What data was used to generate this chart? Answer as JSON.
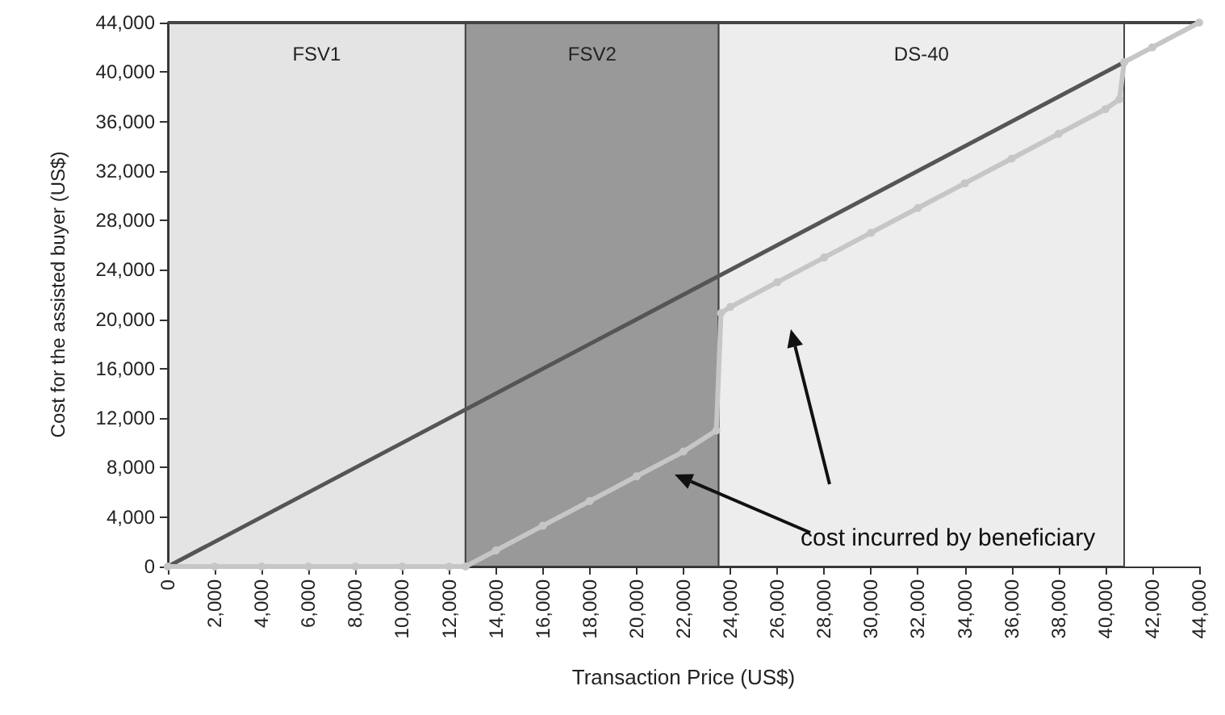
{
  "chart_data": {
    "type": "line",
    "xlabel": "Transaction Price (US$)",
    "ylabel": "Cost for the assisted buyer (US$)",
    "xlim": [
      0,
      44000
    ],
    "ylim": [
      0,
      44000
    ],
    "xticks": [
      {
        "value": 0,
        "label": "0"
      },
      {
        "value": 2000,
        "label": "2,000"
      },
      {
        "value": 4000,
        "label": "4,000"
      },
      {
        "value": 6000,
        "label": "6,000"
      },
      {
        "value": 8000,
        "label": "8,000"
      },
      {
        "value": 10000,
        "label": "10,000"
      },
      {
        "value": 12000,
        "label": "12,000"
      },
      {
        "value": 14000,
        "label": "14,000"
      },
      {
        "value": 16000,
        "label": "16,000"
      },
      {
        "value": 18000,
        "label": "18,000"
      },
      {
        "value": 20000,
        "label": "20,000"
      },
      {
        "value": 22000,
        "label": "22,000"
      },
      {
        "value": 24000,
        "label": "24,000"
      },
      {
        "value": 26000,
        "label": "26,000"
      },
      {
        "value": 28000,
        "label": "28,000"
      },
      {
        "value": 30000,
        "label": "30,000"
      },
      {
        "value": 32000,
        "label": "32,000"
      },
      {
        "value": 34000,
        "label": "34,000"
      },
      {
        "value": 36000,
        "label": "36,000"
      },
      {
        "value": 38000,
        "label": "38,000"
      },
      {
        "value": 40000,
        "label": "40,000"
      },
      {
        "value": 42000,
        "label": "42,000"
      },
      {
        "value": 44000,
        "label": "44,000"
      }
    ],
    "yticks": [
      {
        "value": 0,
        "label": "0"
      },
      {
        "value": 4000,
        "label": "4,000"
      },
      {
        "value": 8000,
        "label": "8,000"
      },
      {
        "value": 12000,
        "label": "12,000"
      },
      {
        "value": 16000,
        "label": "16,000"
      },
      {
        "value": 20000,
        "label": "20,000"
      },
      {
        "value": 24000,
        "label": "24,000"
      },
      {
        "value": 28000,
        "label": "28,000"
      },
      {
        "value": 32000,
        "label": "32,000"
      },
      {
        "value": 36000,
        "label": "36,000"
      },
      {
        "value": 40000,
        "label": "40,000"
      },
      {
        "value": 44000,
        "label": "44,000"
      }
    ],
    "grid": false,
    "bands": [
      {
        "axis": "x",
        "from": 0,
        "to": 12700,
        "label": "FSV1",
        "color": "#e4e4e4"
      },
      {
        "axis": "x",
        "from": 12700,
        "to": 23500,
        "label": "FSV2",
        "color": "#999999"
      },
      {
        "axis": "x",
        "from": 23500,
        "to": 40800,
        "label": "DS-40",
        "color": "#ededed"
      }
    ],
    "series": [
      {
        "color": "#555555",
        "marker": "none",
        "x": [
          0,
          40800
        ],
        "values": [
          0,
          40800
        ]
      },
      {
        "color": "#c6c6c6",
        "marker": "circle",
        "x": [
          0,
          2000,
          4000,
          6000,
          8000,
          10000,
          12000,
          12700,
          14000,
          16000,
          18000,
          20000,
          22000,
          23400,
          23600,
          24000,
          26000,
          28000,
          30000,
          32000,
          34000,
          36000,
          38000,
          40000,
          40600,
          40800,
          42000,
          44000
        ],
        "values": [
          0,
          0,
          0,
          0,
          0,
          0,
          0,
          0,
          1300,
          3300,
          5300,
          7300,
          9300,
          11000,
          20500,
          21000,
          23000,
          25000,
          27000,
          29000,
          31000,
          33000,
          35000,
          37000,
          37800,
          40800,
          42000,
          44000
        ]
      }
    ],
    "annotations": [
      "cost incurred by beneficiary"
    ]
  }
}
